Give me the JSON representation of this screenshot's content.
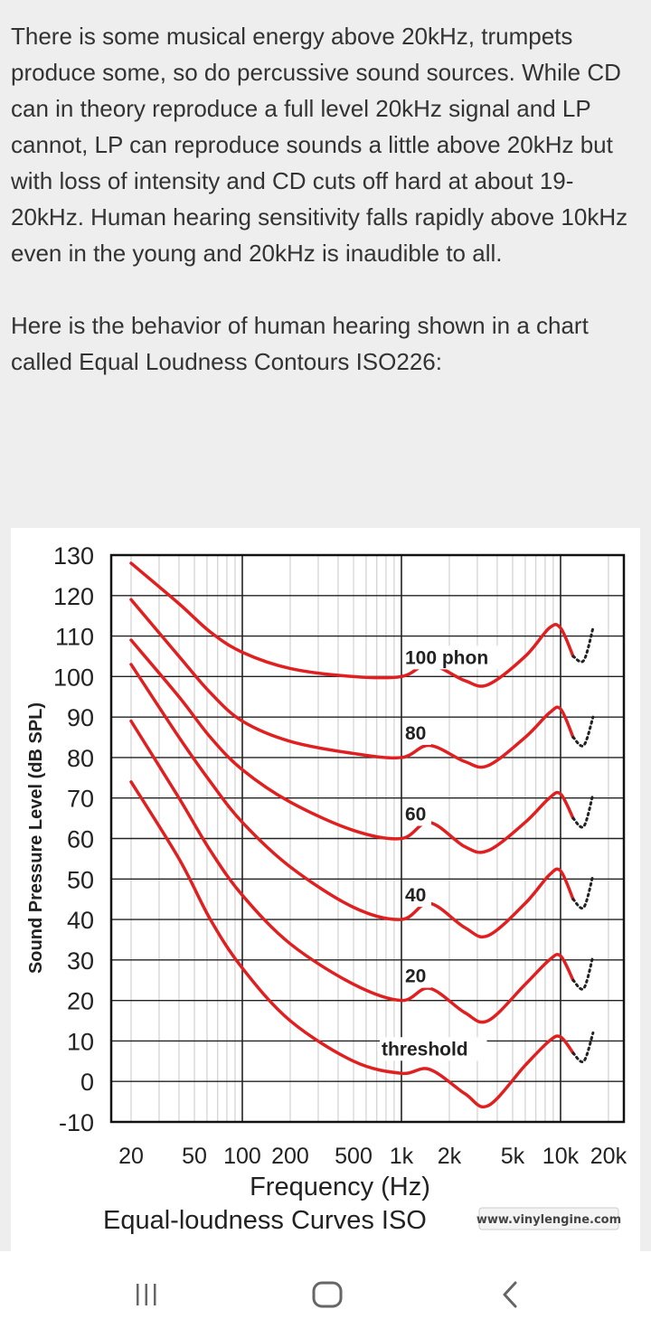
{
  "article": {
    "paragraphs": [
      "There is some musical energy above 20kHz, trumpets produce some, so do percussive sound sources. While CD can in theory reproduce a full level 20kHz signal and LP cannot, LP can reproduce sounds a little above 20kHz but with loss of intensity and CD cuts off hard at about 19-20kHz. Human hearing sensitivity falls rapidly above 10kHz even in the young and 20kHz is inaudible to all.",
      "Here is the behavior of human hearing shown in a chart called Equal Loudness Contours ISO226:"
    ]
  },
  "watermark": "www.vinylengine.com",
  "chart_data": {
    "type": "line",
    "title": "Equal-loudness Curves ISO",
    "xlabel": "Frequency (Hz)",
    "ylabel": "Sound Pressure Level (dB SPL)",
    "xscale": "log",
    "xlim": [
      15,
      25000
    ],
    "ylim": [
      -10,
      130
    ],
    "x_tick_labels": [
      "20",
      "50",
      "100",
      "200",
      "500",
      "1k",
      "2k",
      "5k",
      "10k",
      "20k"
    ],
    "x_ticks": [
      20,
      50,
      100,
      200,
      500,
      1000,
      2000,
      5000,
      10000,
      20000
    ],
    "y_ticks": [
      130,
      120,
      110,
      100,
      90,
      80,
      70,
      60,
      50,
      40,
      30,
      20,
      10,
      0,
      -10
    ],
    "grid": true,
    "line_color": "#e02020",
    "series": [
      {
        "name": "100 phon",
        "x": [
          20,
          40,
          63,
          100,
          200,
          500,
          1000,
          1500,
          2500,
          3500,
          6000,
          8500,
          10000,
          12000
        ],
        "y": [
          128,
          118,
          111,
          106,
          102,
          100,
          100,
          103,
          99,
          98,
          105,
          112,
          112,
          105
        ]
      },
      {
        "name": "80",
        "x": [
          20,
          40,
          63,
          100,
          200,
          500,
          1000,
          1500,
          2500,
          3500,
          6000,
          8500,
          10000,
          12000
        ],
        "y": [
          119,
          105,
          96,
          89,
          84,
          81,
          80,
          83,
          79,
          78,
          85,
          91,
          92,
          85
        ]
      },
      {
        "name": "60",
        "x": [
          20,
          40,
          63,
          100,
          200,
          500,
          1000,
          1500,
          2500,
          3500,
          6000,
          8500,
          10000,
          12000
        ],
        "y": [
          109,
          95,
          85,
          77,
          69,
          62,
          60,
          64,
          58,
          57,
          64,
          70,
          71,
          65
        ]
      },
      {
        "name": "40",
        "x": [
          20,
          40,
          63,
          100,
          200,
          500,
          1000,
          1500,
          2500,
          3500,
          6000,
          8500,
          10000,
          12000
        ],
        "y": [
          103,
          85,
          74,
          64,
          53,
          43,
          40,
          44,
          38,
          36,
          44,
          51,
          52,
          45
        ]
      },
      {
        "name": "20",
        "x": [
          20,
          40,
          63,
          100,
          200,
          500,
          1000,
          1500,
          2500,
          3500,
          6000,
          8500,
          10000,
          12000
        ],
        "y": [
          89,
          70,
          57,
          46,
          34,
          24,
          20,
          23,
          17,
          15,
          24,
          30,
          31,
          25
        ]
      },
      {
        "name": "threshold",
        "x": [
          20,
          40,
          63,
          100,
          200,
          500,
          1000,
          1500,
          2500,
          3500,
          6000,
          8500,
          10000,
          12000
        ],
        "y": [
          74,
          55,
          40,
          28,
          15,
          5,
          2,
          3,
          -3,
          -6,
          4,
          10,
          11,
          7
        ]
      }
    ],
    "dotted_extensions": [
      {
        "name": "100 phon",
        "x": [
          12000,
          14000,
          16000
        ],
        "y": [
          105,
          104,
          112
        ]
      },
      {
        "name": "80",
        "x": [
          12000,
          14000,
          16000
        ],
        "y": [
          85,
          83,
          90
        ]
      },
      {
        "name": "60",
        "x": [
          12000,
          14000,
          16000
        ],
        "y": [
          65,
          63,
          71
        ]
      },
      {
        "name": "40",
        "x": [
          12000,
          14000,
          16000
        ],
        "y": [
          45,
          43,
          51
        ]
      },
      {
        "name": "20",
        "x": [
          12000,
          14000,
          16000
        ],
        "y": [
          25,
          23,
          31
        ]
      },
      {
        "name": "threshold",
        "x": [
          12000,
          14000,
          16000
        ],
        "y": [
          7,
          5,
          12
        ]
      }
    ]
  },
  "navbar": {
    "recents_icon": "recents-icon",
    "home_icon": "home-icon",
    "back_icon": "back-icon"
  }
}
